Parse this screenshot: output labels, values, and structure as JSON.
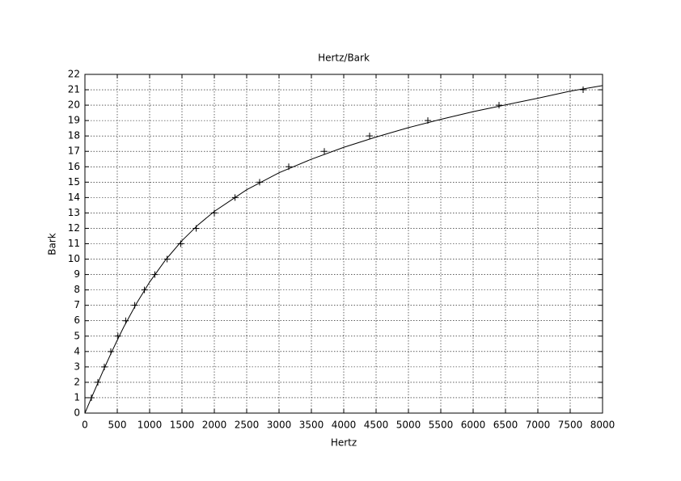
{
  "chart_data": {
    "type": "line",
    "title": "Hertz/Bark",
    "xlabel": "Hertz",
    "ylabel": "Bark",
    "xlim": [
      0,
      8000
    ],
    "ylim": [
      0,
      22
    ],
    "xticks": [
      0,
      500,
      1000,
      1500,
      2000,
      2500,
      3000,
      3500,
      4000,
      4500,
      5000,
      5500,
      6000,
      6500,
      7000,
      7500,
      8000
    ],
    "yticks": [
      0,
      1,
      2,
      3,
      4,
      5,
      6,
      7,
      8,
      9,
      10,
      11,
      12,
      13,
      14,
      15,
      16,
      17,
      18,
      19,
      20,
      21,
      22
    ],
    "grid": true,
    "series": [
      {
        "color": "#000000",
        "marker": "none",
        "x": [
          0,
          100,
          200,
          300,
          400,
          500,
          600,
          800,
          1000,
          1250,
          1500,
          1750,
          2000,
          2500,
          3000,
          3500,
          4000,
          4500,
          5000,
          5500,
          6000,
          6500,
          7000,
          7500,
          8000
        ],
        "values": [
          0,
          0.99,
          1.96,
          2.92,
          3.85,
          4.74,
          5.59,
          7.14,
          8.51,
          9.97,
          11.2,
          12.23,
          13.1,
          14.51,
          15.61,
          16.49,
          17.26,
          17.93,
          18.54,
          19.08,
          19.58,
          20.02,
          20.45,
          20.91,
          21.27
        ]
      },
      {
        "color": "#000000",
        "marker": "plus",
        "x": [
          100,
          200,
          300,
          400,
          510,
          630,
          770,
          920,
          1080,
          1270,
          1480,
          1720,
          2000,
          2320,
          2700,
          3150,
          3700,
          4400,
          5300,
          6400,
          7700
        ],
        "values": [
          1,
          2,
          3,
          4,
          5,
          6,
          7,
          8,
          9,
          10,
          11,
          12,
          13,
          14,
          15,
          16,
          17,
          18,
          19,
          20,
          21
        ]
      }
    ]
  }
}
